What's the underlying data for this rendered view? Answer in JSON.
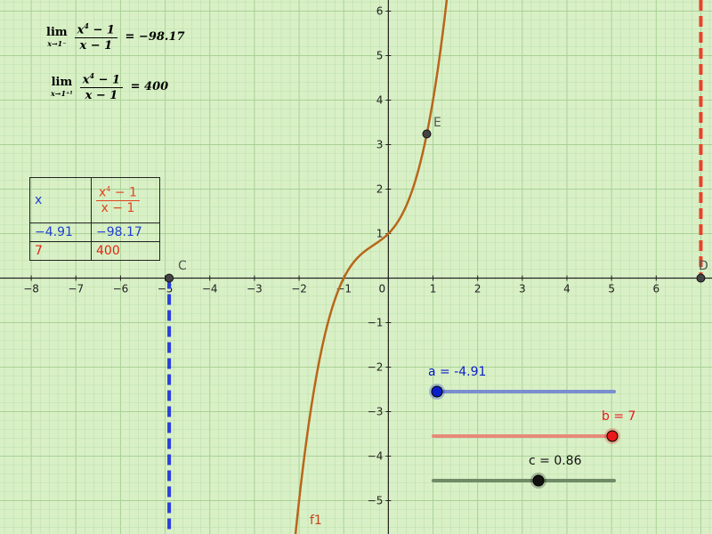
{
  "formulas": [
    {
      "lim_word": "lim",
      "lim_sub": "x→1⁻",
      "num_base": "x",
      "num_exp": "4",
      "num_rest": " − 1",
      "den": "x − 1",
      "eq": " = −98.17"
    },
    {
      "lim_word": "lim",
      "lim_sub": "x→1⁺¹",
      "num_base": "x",
      "num_exp": "4",
      "num_rest": " − 1",
      "den": "x − 1",
      "eq": " = 400"
    }
  ],
  "table": {
    "header_x": "x",
    "header_num_base": "x",
    "header_num_exp": "4",
    "header_num_rest": " − 1",
    "header_den": "x − 1",
    "rows": [
      {
        "x": "−4.91",
        "fx": "−98.17",
        "color": "#1f3fcf"
      },
      {
        "x": "7",
        "fx": "400",
        "color": "#e0240f"
      }
    ]
  },
  "axes": {
    "x_ticks": [
      "−8",
      "−7",
      "−6",
      "−5",
      "−4",
      "−3",
      "−2",
      "−1",
      "0",
      "1",
      "2",
      "3",
      "4",
      "5",
      "6"
    ],
    "y_ticks": [
      "6",
      "5",
      "4",
      "3",
      "2",
      "1",
      "−1",
      "−2",
      "−3",
      "−4",
      "−5"
    ],
    "xlim": [
      -8.7,
      7.25
    ],
    "ylim": [
      -5.75,
      6.25
    ]
  },
  "points": {
    "E": {
      "label": "E",
      "x": 0.86,
      "y": 3.24
    },
    "C": {
      "label": "C",
      "x": -4.91,
      "y": 0
    },
    "D": {
      "label": "D",
      "x": 7,
      "y": 0
    }
  },
  "curve_label": "f1",
  "vertical_lines": [
    {
      "x": -4.91,
      "color": "#2b3fd6"
    },
    {
      "x": 7,
      "color": "#e8422a"
    }
  ],
  "sliders": [
    {
      "label": "a = -4.91",
      "value": -4.91,
      "color": "#0a1ec8",
      "track": "#7a8ecf"
    },
    {
      "label": "b = 7",
      "value": 7,
      "color": "#e8191b",
      "track": "#e68a7a"
    },
    {
      "label": "c = 0.86",
      "value": 0.86,
      "color": "#111111",
      "track": "#6f8a66"
    }
  ],
  "colors": {
    "curve": "#b8661a",
    "grid": "#bcdfa8",
    "gridMajor": "#a9d194",
    "axis": "#222222"
  }
}
